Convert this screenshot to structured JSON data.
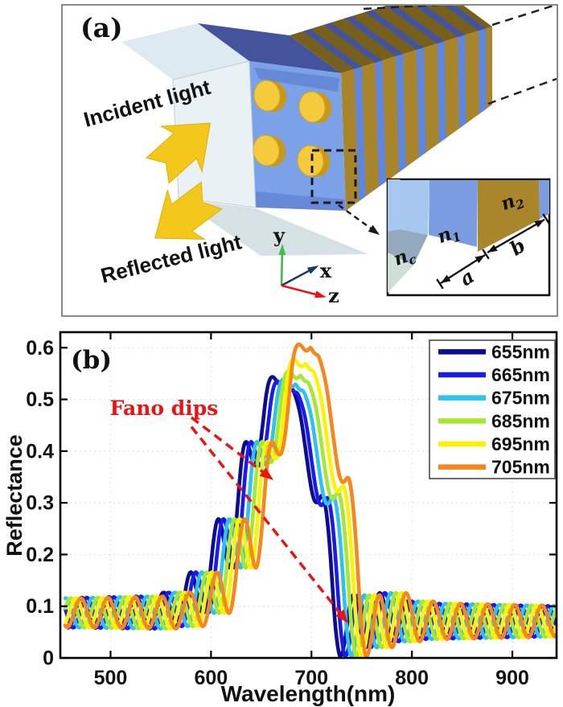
{
  "panel_a": {
    "label": "(a)",
    "annotations": {
      "incident": "Incident light",
      "reflected": "Reflected light"
    },
    "axes_triad": {
      "x": {
        "label": "x",
        "color": "#1F3A5F"
      },
      "y": {
        "label": "y",
        "color": "#3DBE4A"
      },
      "z": {
        "label": "z",
        "color": "#EE1111"
      }
    },
    "inset": {
      "materials": [
        {
          "base": "n",
          "sub": "c"
        },
        {
          "base": "n",
          "sub": "1"
        },
        {
          "base": "n",
          "sub": "2"
        }
      ],
      "dims": {
        "a": "a",
        "b": "b"
      }
    },
    "colors": {
      "arrow": "#F3C81A",
      "arrow_edge": "#DFAF06",
      "slab_face": "#E2EDF2",
      "blue_face": "#7BA2E8",
      "blue_inner": "#5372C8",
      "pillar": "#F5CA3C",
      "pillar_side": "#C8981A",
      "stripe_gold": "#A8842B",
      "stripe_blue": "#5F86DF",
      "top_gold": "#77601B",
      "top_blue": "#44549C",
      "slab_top": "#DCE9F1",
      "floor": "#CCD9DD",
      "inset_lightblue": "#A6C8F0",
      "inset_blue": "#7B9CE0",
      "inset_gold": "#A9852C",
      "inset_gray": "#93A9BD",
      "inset_mint": "#CFDFD8",
      "inset_pillar": "#E8BC29"
    }
  },
  "chart_data": {
    "type": "line",
    "panel_label": "(b)",
    "xlabel": "Wavelength(nm)",
    "ylabel": "Reflectance",
    "xlim": [
      450,
      944
    ],
    "ylim": [
      0,
      0.63
    ],
    "xticks": [
      500,
      600,
      700,
      800,
      900
    ],
    "yticks": [
      0,
      0.1,
      0.2,
      0.3,
      0.4,
      0.5,
      0.6
    ],
    "grid": "dotted",
    "legend_position": "top-right",
    "series": [
      {
        "name": "655nm",
        "color": "#0B0B93",
        "peak_nm": 673,
        "peak_R": 0.541
      },
      {
        "name": "665nm",
        "color": "#1A1AEE",
        "peak_nm": 678,
        "peak_R": 0.532
      },
      {
        "name": "675nm",
        "color": "#2FC1F0",
        "peak_nm": 684,
        "peak_R": 0.536
      },
      {
        "name": "685nm",
        "color": "#A5E82F",
        "peak_nm": 689,
        "peak_R": 0.553
      },
      {
        "name": "695nm",
        "color": "#FBF303",
        "peak_nm": 694,
        "peak_R": 0.576
      },
      {
        "name": "705nm",
        "color": "#F8861B",
        "peak_nm": 699,
        "peak_R": 0.607
      }
    ],
    "annotation": {
      "text": "Fano dips",
      "color": "#E91414",
      "arrows": [
        {
          "from_nm": 580.5,
          "from_R": 0.465,
          "to_nm": 662.2,
          "to_R": 0.344
        },
        {
          "from_nm": 580.5,
          "from_R": 0.447,
          "to_nm": 736.6,
          "to_R": 0.067
        }
      ]
    },
    "model": {
      "baseline_R": 0.086,
      "osc_period_nm": 27,
      "osc_phase_rad": -1.77,
      "envelope_rel": [
        [
          -130,
          {
            "r": 0.088
          }
        ],
        [
          -90,
          {
            "r": 0.115
          }
        ],
        [
          -55,
          {
            "r": 0.24
          }
        ],
        [
          -35,
          {
            "r": 0.375
          }
        ],
        [
          -18,
          {
            "f": 0.92
          }
        ],
        [
          -8,
          {
            "f": 0.975
          }
        ],
        [
          0,
          {
            "f": 1.0
          }
        ],
        [
          8,
          {
            "f": 0.965
          }
        ],
        [
          20,
          {
            "f": 0.76
          }
        ],
        [
          38,
          {
            "f": 0.52
          }
        ],
        [
          50,
          {
            "r": 0.105
          }
        ],
        [
          62,
          {
            "r": 0.047
          }
        ],
        [
          85,
          {
            "r": 0.08
          }
        ],
        [
          125,
          {
            "r": 0.071
          }
        ]
      ],
      "amplitude_rel": [
        [
          -300,
          0.026
        ],
        [
          -120,
          0.032
        ],
        [
          -85,
          0.06
        ],
        [
          -45,
          0.078
        ],
        [
          -18,
          0.04
        ],
        [
          0,
          0.005
        ],
        [
          25,
          0.032
        ],
        [
          55,
          0.076
        ],
        [
          85,
          0.052
        ],
        [
          130,
          0.035
        ],
        [
          300,
          0.028
        ]
      ]
    }
  }
}
